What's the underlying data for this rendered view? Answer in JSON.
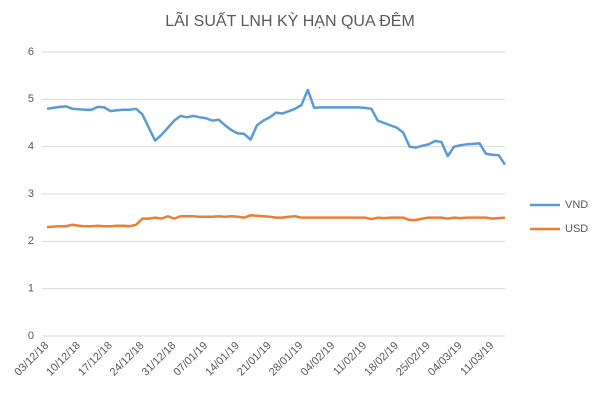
{
  "chart_data": {
    "type": "line",
    "title": "LÃI SUẤT LNH KỲ HẠN QUA ĐÊM",
    "categories": [
      "03/12/18",
      null,
      null,
      null,
      null,
      "10/12/18",
      null,
      null,
      null,
      null,
      "17/12/18",
      null,
      null,
      null,
      null,
      "24/12/18",
      null,
      null,
      null,
      null,
      "31/12/18",
      null,
      null,
      null,
      null,
      "07/01/19",
      null,
      null,
      null,
      null,
      "14/01/19",
      null,
      null,
      null,
      null,
      "21/01/19",
      null,
      null,
      null,
      null,
      "28/01/19",
      null,
      null,
      null,
      null,
      "04/02/19",
      null,
      null,
      null,
      null,
      "11/02/19",
      null,
      null,
      null,
      null,
      "18/02/19",
      null,
      null,
      null,
      null,
      "25/02/19",
      null,
      null,
      null,
      null,
      "04/03/19",
      null,
      null,
      null,
      null,
      "11/03/19",
      null,
      null
    ],
    "series": [
      {
        "name": "VND",
        "color": "#5b9bd5",
        "values": [
          4.8,
          4.82,
          4.84,
          4.85,
          4.8,
          4.79,
          4.78,
          4.78,
          4.84,
          4.83,
          4.75,
          4.77,
          4.78,
          4.78,
          4.8,
          4.68,
          4.4,
          4.13,
          4.25,
          4.4,
          4.55,
          4.65,
          4.62,
          4.65,
          4.62,
          4.6,
          4.55,
          4.57,
          4.45,
          4.35,
          4.28,
          4.27,
          4.15,
          4.45,
          4.55,
          4.62,
          4.72,
          4.7,
          4.75,
          4.8,
          4.88,
          5.2,
          4.82,
          4.83,
          4.83,
          4.83,
          4.83,
          4.83,
          4.83,
          4.83,
          4.82,
          4.8,
          4.55,
          4.5,
          4.45,
          4.4,
          4.3,
          4.0,
          3.98,
          4.02,
          4.05,
          4.12,
          4.1,
          3.8,
          4.0,
          4.03,
          4.05,
          4.06,
          4.07,
          3.85,
          3.83,
          3.82,
          3.62
        ]
      },
      {
        "name": "USD",
        "color": "#ed7d31",
        "values": [
          2.3,
          2.31,
          2.32,
          2.32,
          2.35,
          2.33,
          2.32,
          2.32,
          2.33,
          2.32,
          2.32,
          2.33,
          2.33,
          2.32,
          2.35,
          2.48,
          2.48,
          2.5,
          2.48,
          2.53,
          2.48,
          2.53,
          2.53,
          2.53,
          2.52,
          2.52,
          2.52,
          2.53,
          2.52,
          2.53,
          2.52,
          2.5,
          2.55,
          2.54,
          2.53,
          2.52,
          2.5,
          2.5,
          2.52,
          2.53,
          2.5,
          2.5,
          2.5,
          2.5,
          2.5,
          2.5,
          2.5,
          2.5,
          2.5,
          2.5,
          2.5,
          2.47,
          2.5,
          2.49,
          2.5,
          2.5,
          2.5,
          2.45,
          2.45,
          2.48,
          2.5,
          2.5,
          2.5,
          2.48,
          2.5,
          2.49,
          2.5,
          2.5,
          2.5,
          2.5,
          2.48,
          2.49,
          2.5
        ]
      }
    ],
    "ylim": [
      0,
      6
    ],
    "yticks": [
      0,
      1,
      2,
      3,
      4,
      5,
      6
    ],
    "grid": true,
    "legend": "right"
  }
}
